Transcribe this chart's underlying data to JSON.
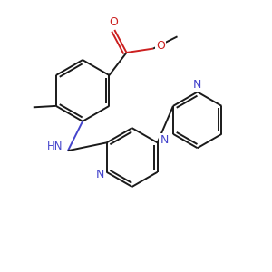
{
  "background_color": "#ffffff",
  "bond_color": "#1a1a1a",
  "nitrogen_color": "#4444cc",
  "oxygen_color": "#cc2020",
  "line_width": 1.4,
  "figsize": [
    3.0,
    3.0
  ],
  "dpi": 100,
  "xlim": [
    0,
    10
  ],
  "ylim": [
    0,
    10
  ]
}
